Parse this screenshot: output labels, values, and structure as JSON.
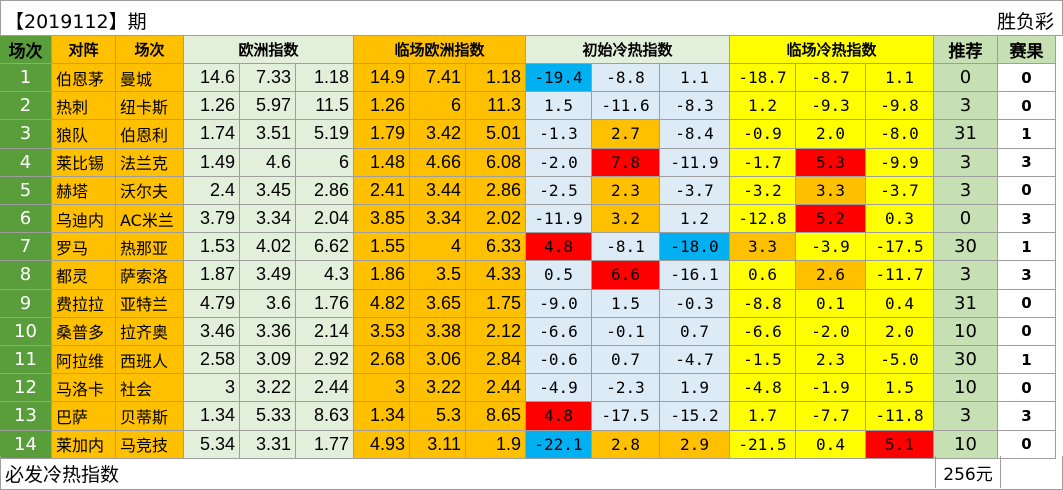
{
  "title": {
    "period": "【2019112】期",
    "type": "胜负彩"
  },
  "footer": {
    "label": "必发冷热指数",
    "cost": "256元"
  },
  "headers": {
    "idx": "场次",
    "home": "对阵",
    "away": "场次",
    "euro": "欧洲指数",
    "euro_live": "临场欧洲指数",
    "heat_init": "初始冷热指数",
    "heat_live": "临场冷热指数",
    "rec": "推荐",
    "result": "赛果"
  },
  "colors": {
    "green_dark": "#5a9e3c",
    "orange": "#ffc000",
    "light_green": "#e2efda",
    "light_blue": "#ddebf7",
    "yellow": "#ffff00",
    "red": "#ff0000",
    "blue": "#00b0f0",
    "rec_green": "#c6e0b4"
  },
  "rows": [
    {
      "idx": "1",
      "home": "伯恩茅",
      "away": "曼城",
      "e1": "14.6",
      "e2": "7.33",
      "e3": "1.18",
      "l1": "14.9",
      "l2": "7.41",
      "l3": "1.18",
      "h1": "-19.4",
      "h2": "-8.8",
      "h3": "1.1",
      "c1": "-18.7",
      "c2": "-8.7",
      "c3": "1.1",
      "rec": "0",
      "res": "0",
      "hc": [
        "blue",
        "light",
        "light"
      ],
      "cc": [
        "yellow",
        "yellow",
        "yellow"
      ]
    },
    {
      "idx": "2",
      "home": "热刺",
      "away": "纽卡斯",
      "e1": "1.26",
      "e2": "5.97",
      "e3": "11.5",
      "l1": "1.26",
      "l2": "6",
      "l3": "11.3",
      "h1": "1.5",
      "h2": "-11.6",
      "h3": "-8.3",
      "c1": "1.2",
      "c2": "-9.3",
      "c3": "-9.8",
      "rec": "3",
      "res": "0",
      "hc": [
        "light",
        "light",
        "light"
      ],
      "cc": [
        "yellow",
        "yellow",
        "yellow"
      ]
    },
    {
      "idx": "3",
      "home": "狼队",
      "away": "伯恩利",
      "e1": "1.74",
      "e2": "3.51",
      "e3": "5.19",
      "l1": "1.79",
      "l2": "3.42",
      "l3": "5.01",
      "h1": "-1.3",
      "h2": "2.7",
      "h3": "-8.4",
      "c1": "-0.9",
      "c2": "2.0",
      "c3": "-8.0",
      "rec": "31",
      "res": "1",
      "hc": [
        "light",
        "orange",
        "light"
      ],
      "cc": [
        "yellow",
        "yellow",
        "yellow"
      ]
    },
    {
      "idx": "4",
      "home": "莱比锡",
      "away": "法兰克",
      "e1": "1.49",
      "e2": "4.6",
      "e3": "6",
      "l1": "1.48",
      "l2": "4.66",
      "l3": "6.08",
      "h1": "-2.0",
      "h2": "7.8",
      "h3": "-11.9",
      "c1": "-1.7",
      "c2": "5.3",
      "c3": "-9.9",
      "rec": "3",
      "res": "3",
      "hc": [
        "light",
        "red",
        "light"
      ],
      "cc": [
        "yellow",
        "red",
        "yellow"
      ]
    },
    {
      "idx": "5",
      "home": "赫塔",
      "away": "沃尔夫",
      "e1": "2.4",
      "e2": "3.45",
      "e3": "2.86",
      "l1": "2.41",
      "l2": "3.44",
      "l3": "2.86",
      "h1": "-2.5",
      "h2": "2.3",
      "h3": "-3.7",
      "c1": "-3.2",
      "c2": "3.3",
      "c3": "-3.7",
      "rec": "3",
      "res": "0",
      "hc": [
        "light",
        "orange",
        "light"
      ],
      "cc": [
        "yellow",
        "orange",
        "yellow"
      ]
    },
    {
      "idx": "6",
      "home": "乌迪内",
      "away": "AC米兰",
      "e1": "3.79",
      "e2": "3.34",
      "e3": "2.04",
      "l1": "3.85",
      "l2": "3.34",
      "l3": "2.02",
      "h1": "-11.9",
      "h2": "3.2",
      "h3": "1.2",
      "c1": "-12.8",
      "c2": "5.2",
      "c3": "0.3",
      "rec": "0",
      "res": "3",
      "hc": [
        "light",
        "orange",
        "light"
      ],
      "cc": [
        "yellow",
        "red",
        "yellow"
      ]
    },
    {
      "idx": "7",
      "home": "罗马",
      "away": "热那亚",
      "e1": "1.53",
      "e2": "4.02",
      "e3": "6.62",
      "l1": "1.55",
      "l2": "4",
      "l3": "6.33",
      "h1": "4.8",
      "h2": "-8.1",
      "h3": "-18.0",
      "c1": "3.3",
      "c2": "-3.9",
      "c3": "-17.5",
      "rec": "30",
      "res": "1",
      "hc": [
        "red",
        "light",
        "blue"
      ],
      "cc": [
        "orange",
        "yellow",
        "yellow"
      ]
    },
    {
      "idx": "8",
      "home": "都灵",
      "away": "萨索洛",
      "e1": "1.87",
      "e2": "3.49",
      "e3": "4.3",
      "l1": "1.86",
      "l2": "3.5",
      "l3": "4.33",
      "h1": "0.5",
      "h2": "6.6",
      "h3": "-16.1",
      "c1": "0.6",
      "c2": "2.6",
      "c3": "-11.7",
      "rec": "3",
      "res": "3",
      "hc": [
        "light",
        "red",
        "light"
      ],
      "cc": [
        "yellow",
        "orange",
        "yellow"
      ]
    },
    {
      "idx": "9",
      "home": "费拉拉",
      "away": "亚特兰",
      "e1": "4.79",
      "e2": "3.6",
      "e3": "1.76",
      "l1": "4.82",
      "l2": "3.65",
      "l3": "1.75",
      "h1": "-9.0",
      "h2": "1.5",
      "h3": "-0.3",
      "c1": "-8.8",
      "c2": "0.1",
      "c3": "0.4",
      "rec": "31",
      "res": "0",
      "hc": [
        "light",
        "light",
        "light"
      ],
      "cc": [
        "yellow",
        "yellow",
        "yellow"
      ]
    },
    {
      "idx": "10",
      "home": "桑普多",
      "away": "拉齐奥",
      "e1": "3.46",
      "e2": "3.36",
      "e3": "2.14",
      "l1": "3.53",
      "l2": "3.38",
      "l3": "2.12",
      "h1": "-6.6",
      "h2": "-0.1",
      "h3": "0.7",
      "c1": "-6.6",
      "c2": "-2.0",
      "c3": "2.0",
      "rec": "10",
      "res": "0",
      "hc": [
        "light",
        "light",
        "light"
      ],
      "cc": [
        "yellow",
        "yellow",
        "yellow"
      ]
    },
    {
      "idx": "11",
      "home": "阿拉维",
      "away": "西班人",
      "e1": "2.58",
      "e2": "3.09",
      "e3": "2.92",
      "l1": "2.68",
      "l2": "3.06",
      "l3": "2.84",
      "h1": "-0.6",
      "h2": "0.7",
      "h3": "-4.7",
      "c1": "-1.5",
      "c2": "2.3",
      "c3": "-5.0",
      "rec": "30",
      "res": "1",
      "hc": [
        "light",
        "light",
        "light"
      ],
      "cc": [
        "yellow",
        "yellow",
        "yellow"
      ]
    },
    {
      "idx": "12",
      "home": "马洛卡",
      "away": "社会",
      "e1": "3",
      "e2": "3.22",
      "e3": "2.44",
      "l1": "3",
      "l2": "3.22",
      "l3": "2.44",
      "h1": "-4.9",
      "h2": "-2.3",
      "h3": "1.9",
      "c1": "-4.8",
      "c2": "-1.9",
      "c3": "1.5",
      "rec": "10",
      "res": "0",
      "hc": [
        "light",
        "light",
        "light"
      ],
      "cc": [
        "yellow",
        "yellow",
        "yellow"
      ]
    },
    {
      "idx": "13",
      "home": "巴萨",
      "away": "贝蒂斯",
      "e1": "1.34",
      "e2": "5.33",
      "e3": "8.63",
      "l1": "1.34",
      "l2": "5.3",
      "l3": "8.65",
      "h1": "4.8",
      "h2": "-17.5",
      "h3": "-15.2",
      "c1": "1.7",
      "c2": "-7.7",
      "c3": "-11.8",
      "rec": "3",
      "res": "3",
      "hc": [
        "red",
        "light",
        "light"
      ],
      "cc": [
        "yellow",
        "yellow",
        "yellow"
      ]
    },
    {
      "idx": "14",
      "home": "莱加内",
      "away": "马竞技",
      "e1": "5.34",
      "e2": "3.31",
      "e3": "1.77",
      "l1": "4.93",
      "l2": "3.11",
      "l3": "1.9",
      "h1": "-22.1",
      "h2": "2.8",
      "h3": "2.9",
      "c1": "-21.5",
      "c2": "0.4",
      "c3": "5.1",
      "rec": "10",
      "res": "0",
      "hc": [
        "blue",
        "orange",
        "orange"
      ],
      "cc": [
        "yellow",
        "yellow",
        "red"
      ]
    }
  ]
}
